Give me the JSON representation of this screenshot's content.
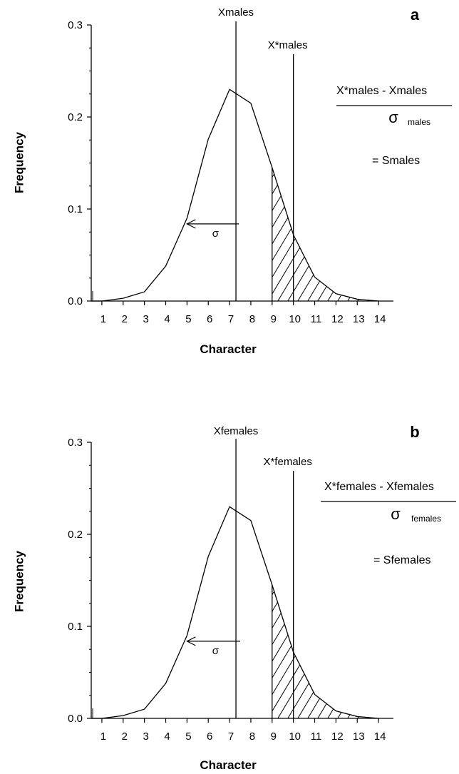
{
  "chart_data": [
    {
      "type": "line",
      "panel_label": "a",
      "x": [
        0.5,
        1,
        2,
        3,
        4,
        5,
        6,
        7,
        8,
        9,
        10,
        11,
        12,
        13,
        14
      ],
      "y": [
        0.0,
        0.0,
        0.003,
        0.01,
        0.038,
        0.09,
        0.176,
        0.23,
        0.215,
        0.145,
        0.072,
        0.026,
        0.008,
        0.002,
        0.0
      ],
      "xlabel": "Character",
      "ylabel": "Frequency",
      "xlim": [
        0.5,
        14.7
      ],
      "ylim": [
        0,
        0.3
      ],
      "xticks": [
        1,
        2,
        3,
        4,
        5,
        6,
        7,
        8,
        9,
        10,
        11,
        12,
        13,
        14
      ],
      "yticks": [
        0.0,
        0.1,
        0.2,
        0.3
      ],
      "ytick_labels": [
        "0.0",
        "0.1",
        "0.2",
        "0.3"
      ],
      "mean_x": 7.3,
      "mean_label": "Xmales",
      "selected_x": 10.0,
      "selected_label": "X*males",
      "shade_from_x": 9,
      "sigma_arrow": {
        "from_x": 7.3,
        "to_x": 5,
        "y": 0.09,
        "label": "σ"
      },
      "formula": {
        "numerator": "X*males - Xmales",
        "denominator_symbol": "σ",
        "denominator_subscript": "males",
        "result": "= Smales"
      },
      "grid": false
    },
    {
      "type": "line",
      "panel_label": "b",
      "x": [
        0.5,
        1,
        2,
        3,
        4,
        5,
        6,
        7,
        8,
        9,
        10,
        11,
        12,
        13,
        14
      ],
      "y": [
        0.0,
        0.0,
        0.003,
        0.01,
        0.038,
        0.09,
        0.176,
        0.23,
        0.215,
        0.145,
        0.072,
        0.026,
        0.008,
        0.002,
        0.0
      ],
      "xlabel": "Character",
      "ylabel": "Frequency",
      "xlim": [
        0.5,
        14.7
      ],
      "ylim": [
        0,
        0.3
      ],
      "xticks": [
        1,
        2,
        3,
        4,
        5,
        6,
        7,
        8,
        9,
        10,
        11,
        12,
        13,
        14
      ],
      "yticks": [
        0.0,
        0.1,
        0.2,
        0.3
      ],
      "ytick_labels": [
        "0.0",
        "0.1",
        "0.2",
        "0.3"
      ],
      "mean_x": 7.3,
      "mean_label": "Xfemales",
      "selected_x": 10.0,
      "selected_label": "X*females",
      "shade_from_x": 9,
      "sigma_arrow": {
        "from_x": 7.3,
        "to_x": 5,
        "y": 0.09,
        "label": "σ"
      },
      "formula": {
        "numerator": "X*females - Xfemales",
        "denominator_symbol": "σ",
        "denominator_subscript": "females",
        "result": "= Sfemales"
      },
      "grid": false
    }
  ]
}
